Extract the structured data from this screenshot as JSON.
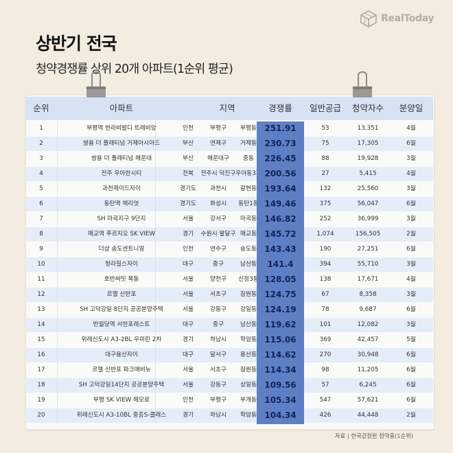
{
  "brand": {
    "logo_text": "RealToday",
    "logo_icon": "cube-logo-icon"
  },
  "title": "상반기 전국",
  "subtitle": "청약경쟁률 상위 20개 아파트(1순위 평균)",
  "table": {
    "headers": {
      "rank": "순위",
      "apartment": "아파트",
      "region": "지역",
      "rate": "경쟁률",
      "supply": "일반공급",
      "applicants": "청약자수",
      "month": "분양일"
    },
    "rows": [
      {
        "rank": "1",
        "apartment": "부평역 한라비발디 트레비앙",
        "province": "인천",
        "city": "부평구",
        "dong": "부평동",
        "rate": "251.91",
        "supply": "53",
        "applicants": "13,351",
        "month": "4월"
      },
      {
        "rank": "2",
        "apartment": "쌍용 더 플래티넘 거제아시아드",
        "province": "부산",
        "city": "연제구",
        "dong": "거제동",
        "rate": "230.73",
        "supply": "75",
        "applicants": "17,305",
        "month": "6월"
      },
      {
        "rank": "3",
        "apartment": "쌍용 더 플래티넘 해운대",
        "province": "부산",
        "city": "해운대구",
        "dong": "중동",
        "rate": "226.45",
        "supply": "88",
        "applicants": "19,928",
        "month": "3월"
      },
      {
        "rank": "4",
        "apartment": "전주 우아한시티",
        "province": "전북",
        "city": "전주시 덕진구",
        "dong": "우아동3가",
        "rate": "200.56",
        "supply": "27",
        "applicants": "5,415",
        "month": "4월"
      },
      {
        "rank": "5",
        "apartment": "과천제이드자이",
        "province": "경기도",
        "city": "과천시",
        "dong": "갈현동",
        "rate": "193.64",
        "supply": "132",
        "applicants": "25,560",
        "month": "3월"
      },
      {
        "rank": "6",
        "apartment": "동탄역 헤리엇",
        "province": "경기도",
        "city": "화성시",
        "dong": "동탄1동",
        "rate": "149.46",
        "supply": "375",
        "applicants": "56,047",
        "month": "6월"
      },
      {
        "rank": "7",
        "apartment": "SH 마곡지구 9단지",
        "province": "서울",
        "city": "강서구",
        "dong": "마곡동",
        "rate": "146.82",
        "supply": "252",
        "applicants": "36,999",
        "month": "3월"
      },
      {
        "rank": "8",
        "apartment": "매교역 푸르지오 SK VIEW",
        "province": "경기",
        "city": "수원시 팔달구",
        "dong": "매교동",
        "rate": "145.72",
        "supply": "1,074",
        "applicants": "156,505",
        "month": "2월"
      },
      {
        "rank": "9",
        "apartment": "더샵 송도센트니얼",
        "province": "인천",
        "city": "연수구",
        "dong": "송도동",
        "rate": "143.43",
        "supply": "190",
        "applicants": "27,251",
        "month": "6월"
      },
      {
        "rank": "10",
        "apartment": "청라힐스자이",
        "province": "대구",
        "city": "중구",
        "dong": "남산동",
        "rate": "141.4",
        "supply": "394",
        "applicants": "55,710",
        "month": "3월"
      },
      {
        "rank": "11",
        "apartment": "호반써밋 목동",
        "province": "서울",
        "city": "양천구",
        "dong": "신정3동",
        "rate": "128.05",
        "supply": "138",
        "applicants": "17,671",
        "month": "4월"
      },
      {
        "rank": "12",
        "apartment": "르엘 신반포",
        "province": "서울",
        "city": "서초구",
        "dong": "잠원동",
        "rate": "124.75",
        "supply": "67",
        "applicants": "8,358",
        "month": "3월"
      },
      {
        "rank": "13",
        "apartment": "SH 고덕강일 8단지 공공분양주택",
        "province": "서울",
        "city": "강동구",
        "dong": "강일동",
        "rate": "124.19",
        "supply": "78",
        "applicants": "9,687",
        "month": "6월"
      },
      {
        "rank": "14",
        "apartment": "반월당역 서한포레스트",
        "province": "대구",
        "city": "중구",
        "dong": "남산동",
        "rate": "119.62",
        "supply": "101",
        "applicants": "12,082",
        "month": "3월"
      },
      {
        "rank": "15",
        "apartment": "위례신도시 A3-2BL 우미린 2차",
        "province": "경기",
        "city": "하남시",
        "dong": "학암동",
        "rate": "115.06",
        "supply": "369",
        "applicants": "42,457",
        "month": "5월"
      },
      {
        "rank": "16",
        "apartment": "대구용산자이",
        "province": "대구",
        "city": "달서구",
        "dong": "용산동",
        "rate": "114.62",
        "supply": "270",
        "applicants": "30,948",
        "month": "6월"
      },
      {
        "rank": "17",
        "apartment": "르엘 신반포 파크애비뉴",
        "province": "서울",
        "city": "서초구",
        "dong": "잠원동",
        "rate": "114.34",
        "supply": "98",
        "applicants": "11,205",
        "month": "6월"
      },
      {
        "rank": "18",
        "apartment": "SH 고덕강일14단지 공공분양주택",
        "province": "서울",
        "city": "강동구",
        "dong": "상일동",
        "rate": "109.56",
        "supply": "57",
        "applicants": "6,245",
        "month": "6월"
      },
      {
        "rank": "19",
        "apartment": "부평 SK VIEW 해모로",
        "province": "인천",
        "city": "부평구",
        "dong": "부개동",
        "rate": "105.34",
        "supply": "547",
        "applicants": "57,621",
        "month": "6월"
      },
      {
        "rank": "20",
        "apartment": "위례신도시 A3-10BL 중흥S-클래스",
        "province": "경기",
        "city": "하남시",
        "dong": "학암동",
        "rate": "104.34",
        "supply": "426",
        "applicants": "44,448",
        "month": "2월"
      }
    ]
  },
  "source": "자료 | 한국감정원 청약홈(1순위)",
  "colors": {
    "background": "#f4ece1",
    "header": "#d7e3f3",
    "row_alt": "#e5edf8",
    "rate_highlight": "#5f7fc4",
    "rate_text": "#10235a"
  },
  "decor": {
    "clip_icon": "binder-clip-icon"
  }
}
